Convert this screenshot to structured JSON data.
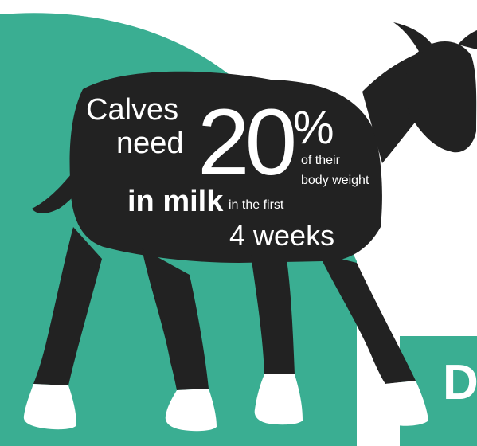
{
  "colors": {
    "teal": "#3aae92",
    "silhouette": "#222222",
    "hooves": "#ffffff",
    "text": "#ffffff"
  },
  "infographic": {
    "line1": "Calves",
    "line2": "need",
    "big_number": "20",
    "percent_sign": "%",
    "unit_line1": "of their",
    "unit_line2": "body weight",
    "in_milk": "in milk",
    "in_the_first": "in the first",
    "duration": "4 weeks"
  },
  "corner_letter": "D"
}
